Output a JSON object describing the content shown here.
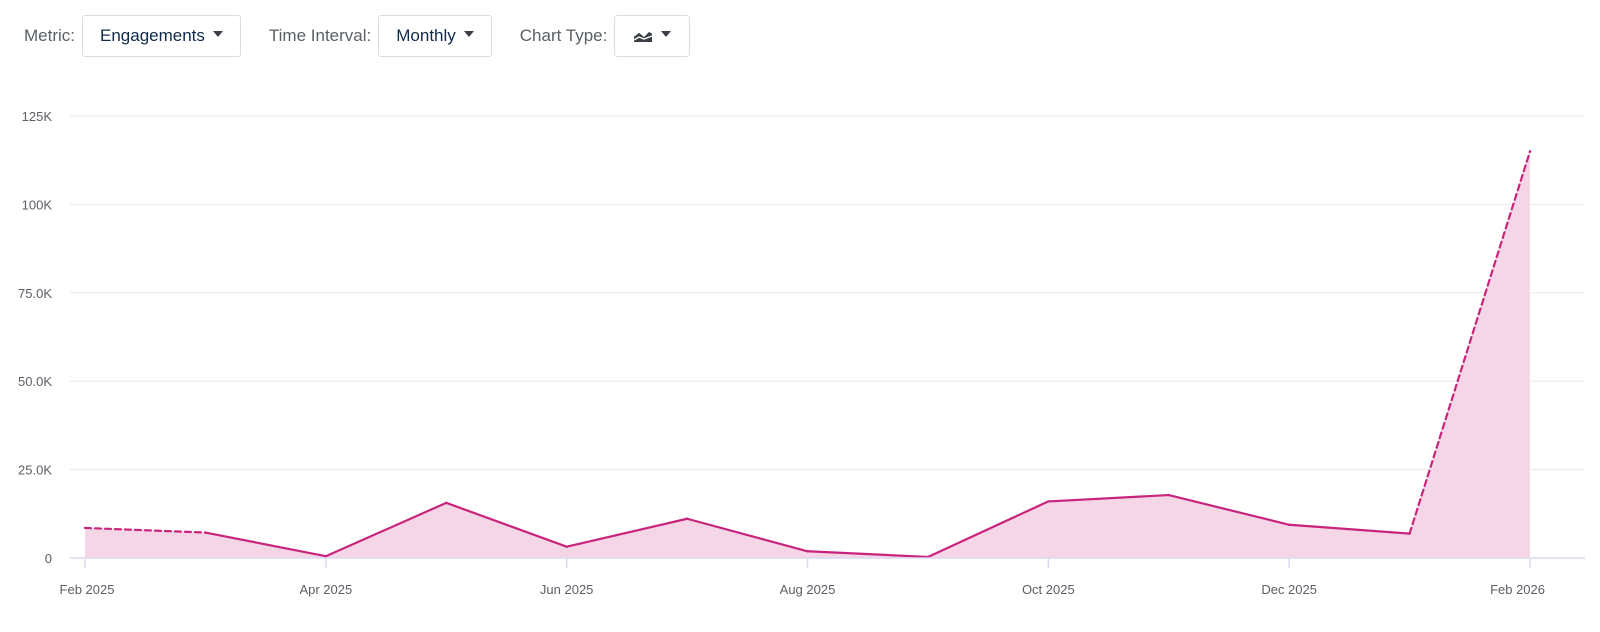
{
  "toolbar": {
    "metric_label": "Metric:",
    "metric_value": "Engagements",
    "interval_label": "Time Interval:",
    "interval_value": "Monthly",
    "chart_type_label": "Chart Type:",
    "chart_type_icon": "area-chart-icon"
  },
  "colors": {
    "line": "#c8247c",
    "fill": "#f5d6e7",
    "grid": "#e8e8ec",
    "axis": "#dcdaf0"
  },
  "chart_data": {
    "type": "area",
    "title": "",
    "xlabel": "",
    "ylabel": "",
    "x": [
      "2025-02",
      "2025-03",
      "2025-04",
      "2025-05",
      "2025-06",
      "2025-07",
      "2025-08",
      "2025-09",
      "2025-10",
      "2025-11",
      "2025-12",
      "2026-01",
      "2026-02"
    ],
    "x_tick_labels": [
      "Feb 2025",
      "Apr 2025",
      "Jun 2025",
      "Aug 2025",
      "Oct 2025",
      "Dec 2025",
      "Feb 2026"
    ],
    "y_tick_labels": [
      "0",
      "25.0K",
      "50.0K",
      "75.0K",
      "100K",
      "125K"
    ],
    "ylim": [
      0,
      125000
    ],
    "grid": true,
    "series": [
      {
        "values": [
          8500,
          7200,
          500,
          15600,
          3200,
          11100,
          1900,
          300,
          16000,
          17800,
          9400,
          6900,
          115000
        ],
        "dashed_segments": [
          0,
          11
        ]
      }
    ]
  }
}
